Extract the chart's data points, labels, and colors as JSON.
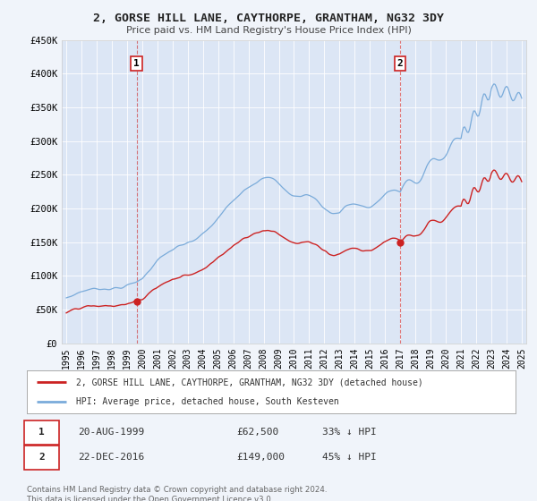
{
  "title": "2, GORSE HILL LANE, CAYTHORPE, GRANTHAM, NG32 3DY",
  "subtitle": "Price paid vs. HM Land Registry's House Price Index (HPI)",
  "ylim": [
    0,
    450000
  ],
  "background_color": "#f0f4fa",
  "plot_background": "#dce6f5",
  "legend_line1": "2, GORSE HILL LANE, CAYTHORPE, GRANTHAM, NG32 3DY (detached house)",
  "legend_line2": "HPI: Average price, detached house, South Kesteven",
  "sale1_date": "20-AUG-1999",
  "sale1_price": "£62,500",
  "sale1_hpi": "33% ↓ HPI",
  "sale1_year": 1999.63,
  "sale1_value": 62500,
  "sale2_date": "22-DEC-2016",
  "sale2_price": "£149,000",
  "sale2_hpi": "45% ↓ HPI",
  "sale2_year": 2016.97,
  "sale2_value": 149000,
  "hpi_color": "#7aabda",
  "price_color": "#cc2222",
  "footer": "Contains HM Land Registry data © Crown copyright and database right 2024.\nThis data is licensed under the Open Government Licence v3.0.",
  "yticks": [
    0,
    50000,
    100000,
    150000,
    200000,
    250000,
    300000,
    350000,
    400000,
    450000
  ],
  "ytick_labels": [
    "£0",
    "£50K",
    "£100K",
    "£150K",
    "£200K",
    "£250K",
    "£300K",
    "£350K",
    "£400K",
    "£450K"
  ]
}
